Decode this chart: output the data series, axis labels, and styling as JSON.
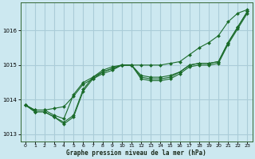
{
  "title": "Graphe pression niveau de la mer (hPa)",
  "background_color": "#cce8f0",
  "grid_color": "#aaccd8",
  "line_color": "#1a6b2a",
  "marker_color": "#1a6b2a",
  "xlim": [
    -0.5,
    23.5
  ],
  "ylim": [
    1012.8,
    1016.8
  ],
  "xticks": [
    0,
    1,
    2,
    3,
    4,
    5,
    6,
    7,
    8,
    9,
    10,
    11,
    12,
    13,
    14,
    15,
    16,
    17,
    18,
    19,
    20,
    21,
    22,
    23
  ],
  "yticks": [
    1013,
    1014,
    1015,
    1016
  ],
  "series": [
    {
      "x": [
        0,
        1,
        2,
        3,
        4,
        5,
        6,
        7,
        8,
        9,
        10,
        11,
        12,
        13,
        14,
        15,
        16,
        17,
        18,
        19,
        20,
        21,
        22,
        23
      ],
      "y": [
        1013.85,
        1013.7,
        1013.7,
        1013.75,
        1013.8,
        1014.1,
        1014.45,
        1014.6,
        1014.75,
        1014.85,
        1015.0,
        1015.0,
        1015.0,
        1015.0,
        1015.0,
        1015.05,
        1015.1,
        1015.3,
        1015.5,
        1015.65,
        1015.85,
        1016.25,
        1016.5,
        1016.6
      ]
    },
    {
      "x": [
        0,
        1,
        2,
        3,
        4,
        5,
        6,
        7,
        8,
        9,
        10,
        11,
        12,
        13,
        14,
        15,
        16,
        17,
        18,
        19,
        20,
        21,
        22,
        23
      ],
      "y": [
        1013.85,
        1013.7,
        1013.7,
        1013.55,
        1013.45,
        1014.15,
        1014.5,
        1014.65,
        1014.8,
        1014.9,
        1015.0,
        1015.0,
        1014.7,
        1014.65,
        1014.65,
        1014.7,
        1014.8,
        1015.0,
        1015.05,
        1015.05,
        1015.1,
        1015.65,
        1016.1,
        1016.55
      ]
    },
    {
      "x": [
        0,
        1,
        2,
        3,
        4,
        5,
        6,
        7,
        8,
        9,
        10,
        11,
        12,
        13,
        14,
        15,
        16,
        17,
        18,
        19,
        20,
        21,
        22,
        23
      ],
      "y": [
        1013.85,
        1013.65,
        1013.65,
        1013.5,
        1013.35,
        1013.55,
        1014.3,
        1014.65,
        1014.85,
        1014.95,
        1015.0,
        1015.0,
        1014.65,
        1014.6,
        1014.6,
        1014.65,
        1014.8,
        1015.0,
        1015.05,
        1015.05,
        1015.1,
        1015.65,
        1016.1,
        1016.55
      ]
    },
    {
      "x": [
        0,
        1,
        2,
        3,
        4,
        5,
        6,
        7,
        8,
        9,
        10,
        11,
        12,
        13,
        14,
        15,
        16,
        17,
        18,
        19,
        20,
        21,
        22,
        23
      ],
      "y": [
        1013.85,
        1013.65,
        1013.65,
        1013.5,
        1013.3,
        1013.5,
        1014.25,
        1014.6,
        1014.8,
        1014.9,
        1015.0,
        1015.0,
        1014.6,
        1014.55,
        1014.55,
        1014.6,
        1014.75,
        1014.95,
        1015.0,
        1015.0,
        1015.05,
        1015.6,
        1016.05,
        1016.5
      ]
    }
  ]
}
